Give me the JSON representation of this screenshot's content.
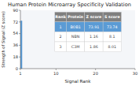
{
  "chart_data": {
    "type": "bar",
    "title": "Human Protein Microarray Specificity Validation",
    "x_label": "Signal Rank",
    "y_label": "Strength of Signal (Z score)",
    "x": [
      1
    ],
    "values": [
      73.91
    ],
    "color": "#5b9bd5",
    "xlim": [
      1,
      30
    ],
    "xticks": [
      1,
      10,
      20,
      30
    ],
    "ylim": [
      0,
      90
    ],
    "yticks": [
      0,
      18,
      36,
      54,
      72,
      90
    ],
    "grid": false,
    "table": {
      "headers": [
        "Rank",
        "Protein",
        "Z score",
        "S score"
      ],
      "rows": [
        [
          "1",
          "BOB1",
          "73.91",
          "73.74"
        ],
        [
          "2",
          "NBN",
          "1.16",
          "8.1"
        ],
        [
          "3",
          "C3M",
          "1.86",
          "8.01"
        ]
      ]
    }
  }
}
